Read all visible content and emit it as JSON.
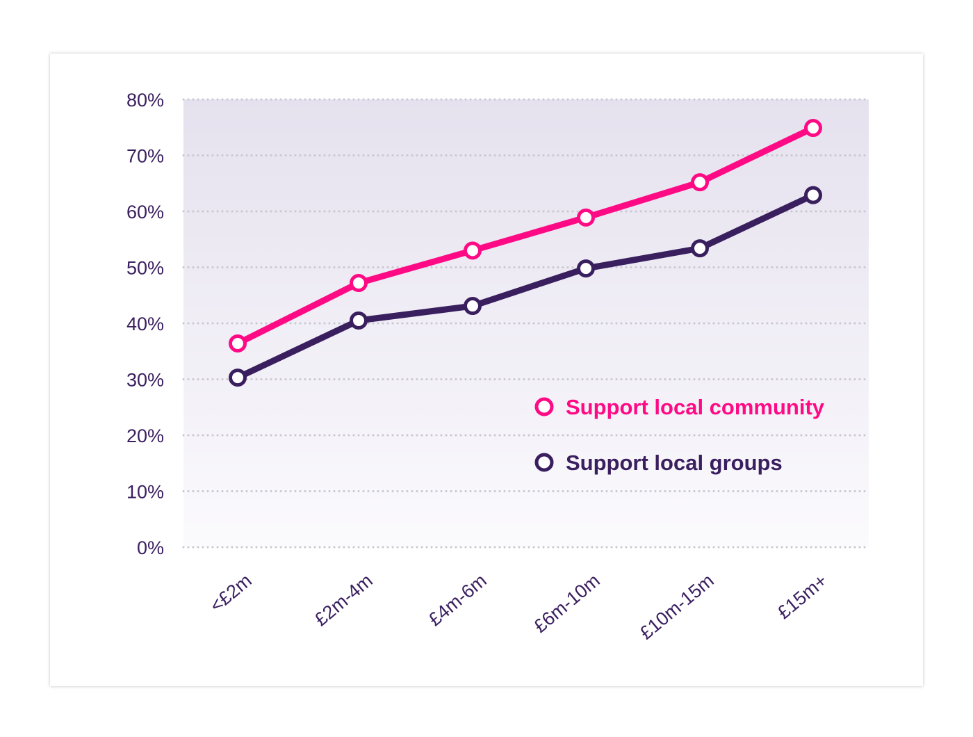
{
  "chart_data": {
    "type": "line",
    "categories": [
      "<£2m",
      "£2m-4m",
      "£4m-6m",
      "£6m-10m",
      "£10m-15m",
      "£15m+"
    ],
    "series": [
      {
        "name": "Support local community",
        "color": "#ff0a85",
        "values": [
          36.4,
          47.2,
          53.0,
          58.9,
          65.2,
          74.9
        ]
      },
      {
        "name": "Support local groups",
        "color": "#3a1f5f",
        "values": [
          30.3,
          40.5,
          43.1,
          49.8,
          53.4,
          62.9
        ]
      }
    ],
    "ylim": [
      0,
      80
    ],
    "yticks": [
      "0%",
      "10%",
      "20%",
      "30%",
      "40%",
      "50%",
      "60%",
      "70%",
      "80%"
    ],
    "grid": true,
    "legend_position": "lower-right inside plot",
    "title": "",
    "xlabel": "",
    "ylabel": ""
  }
}
